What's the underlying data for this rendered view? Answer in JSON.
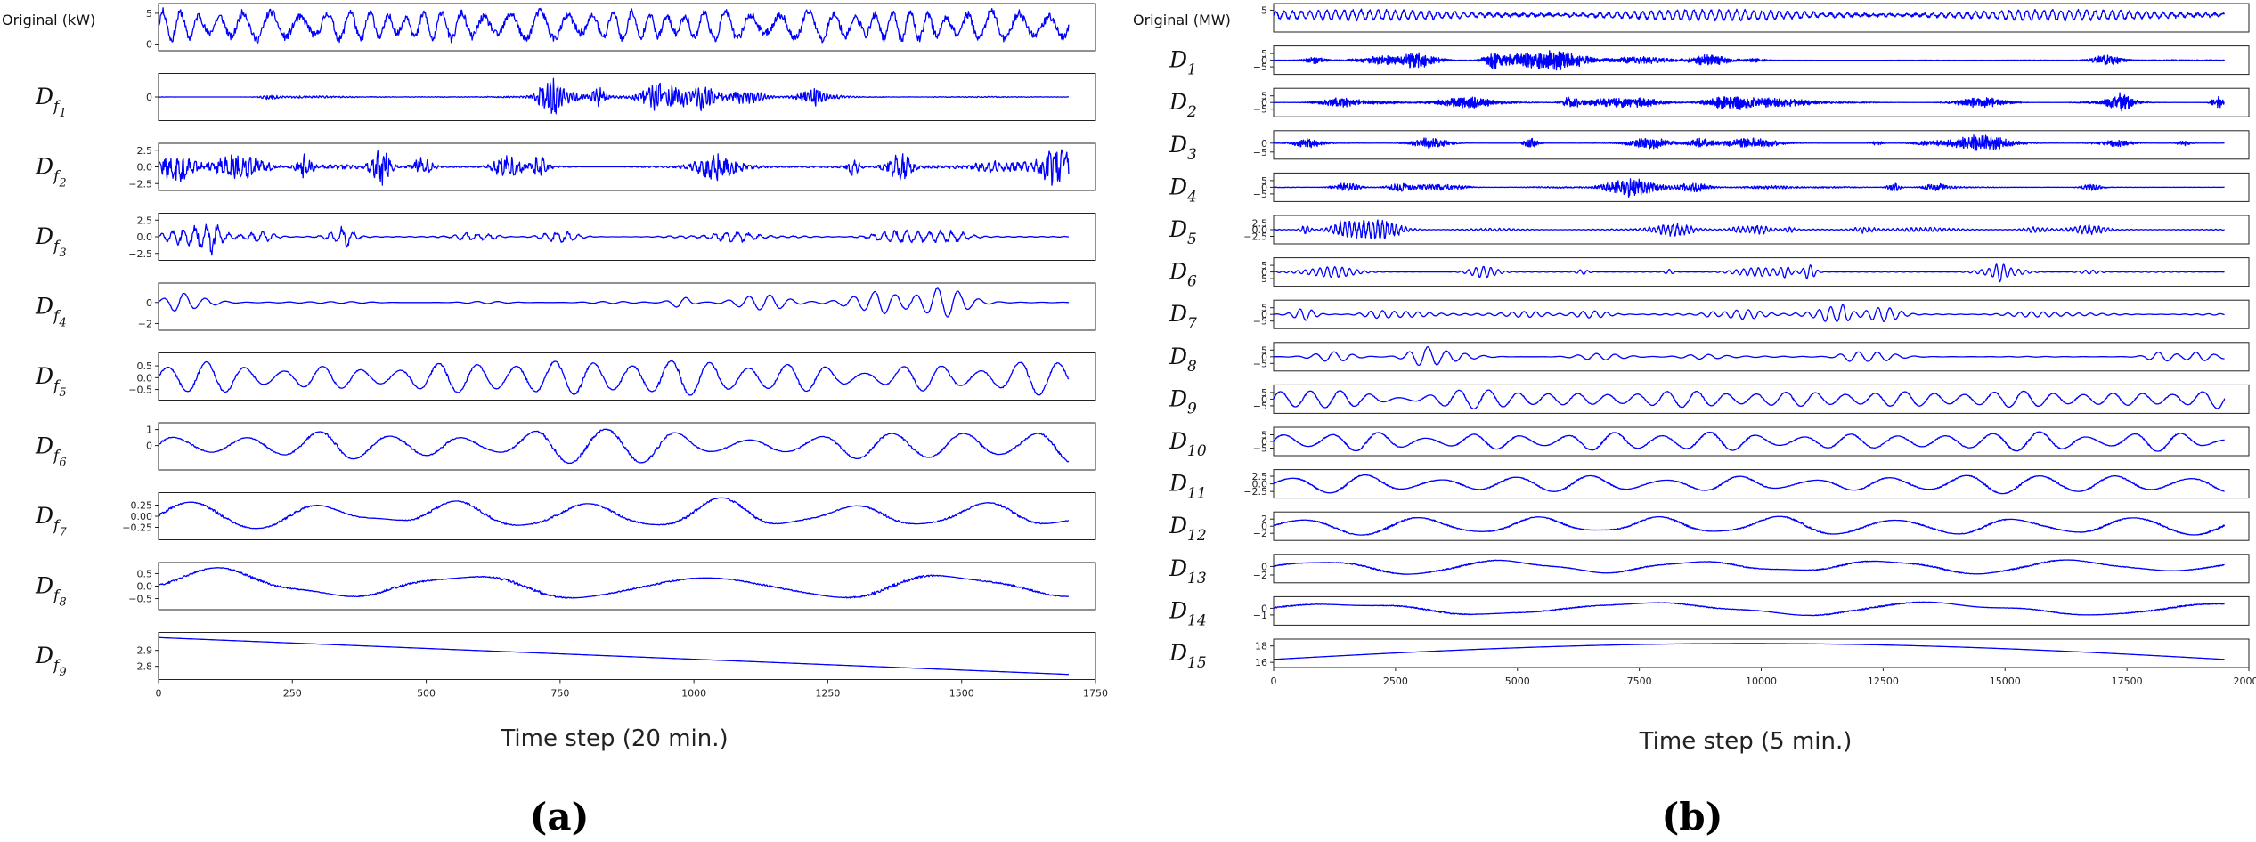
{
  "chart_data": [
    {
      "type": "line",
      "panel_label": "(a)",
      "xlabel": "Time step (20 min.)",
      "xlim": [
        0,
        1750
      ],
      "x_ticks": [
        "0",
        "250",
        "500",
        "750",
        "1000",
        "1250",
        "1500",
        "1750"
      ],
      "series_color": "#0000ff",
      "subplots": [
        {
          "title": "Original (kW)",
          "base": "",
          "sub": "",
          "ylim": [
            -0.5,
            6
          ],
          "yticks": [
            "0",
            "5"
          ]
        },
        {
          "title": "",
          "base": "D",
          "sub": "f",
          "sub2": "1",
          "ylim": [
            -2,
            2
          ],
          "yticks": [
            "0"
          ]
        },
        {
          "title": "",
          "base": "D",
          "sub": "f",
          "sub2": "2",
          "ylim": [
            -3,
            3
          ],
          "yticks": [
            "2.5",
            "0.0",
            "-2.5"
          ]
        },
        {
          "title": "",
          "base": "D",
          "sub": "f",
          "sub2": "3",
          "ylim": [
            -3,
            3
          ],
          "yticks": [
            "2.5",
            "0.0",
            "-2.5"
          ]
        },
        {
          "title": "",
          "base": "D",
          "sub": "f",
          "sub2": "4",
          "ylim": [
            -2.3,
            1.5
          ],
          "yticks": [
            "0",
            "-2"
          ]
        },
        {
          "title": "",
          "base": "D",
          "sub": "f",
          "sub2": "5",
          "ylim": [
            -0.8,
            0.9
          ],
          "yticks": [
            "0.5",
            "0.0",
            "-0.5"
          ]
        },
        {
          "title": "",
          "base": "D",
          "sub": "f",
          "sub2": "6",
          "ylim": [
            -1.3,
            1.2
          ],
          "yticks": [
            "1",
            "0"
          ]
        },
        {
          "title": "",
          "base": "D",
          "sub": "f",
          "sub2": "7",
          "ylim": [
            -0.45,
            0.45
          ],
          "yticks": [
            "0.25",
            "0.00",
            "-0.25"
          ]
        },
        {
          "title": "",
          "base": "D",
          "sub": "f",
          "sub2": "8",
          "ylim": [
            -0.8,
            0.8
          ],
          "yticks": [
            "0.5",
            "0.0",
            "-0.5"
          ]
        },
        {
          "title": "",
          "base": "D",
          "sub": "f",
          "sub2": "9",
          "ylim": [
            2.74,
            2.99
          ],
          "yticks": [
            "2.9",
            "2.8"
          ]
        }
      ]
    },
    {
      "type": "line",
      "panel_label": "(b)",
      "xlabel": "Time step (5 min.)",
      "xlim": [
        0,
        20000
      ],
      "x_ticks": [
        "0",
        "2500",
        "5000",
        "7500",
        "10000",
        "12500",
        "15000",
        "17500",
        "20000"
      ],
      "series_color": "#0000ff",
      "subplots": [
        {
          "title": "Original (MW)",
          "base": "",
          "sub": "",
          "ylim": [
            -1,
            6
          ],
          "yticks": [
            "5"
          ]
        },
        {
          "title": "",
          "base": "D",
          "sub": "1",
          "ylim": [
            -8,
            8
          ],
          "yticks": [
            "5",
            "0",
            "-5"
          ]
        },
        {
          "title": "",
          "base": "D",
          "sub": "2",
          "ylim": [
            -8,
            8
          ],
          "yticks": [
            "5",
            "0",
            "-5"
          ]
        },
        {
          "title": "",
          "base": "D",
          "sub": "3",
          "ylim": [
            -7,
            5
          ],
          "yticks": [
            "0",
            "-5"
          ]
        },
        {
          "title": "",
          "base": "D",
          "sub": "4",
          "ylim": [
            -8,
            8
          ],
          "yticks": [
            "5",
            "0",
            "-5"
          ]
        },
        {
          "title": "",
          "base": "D",
          "sub": "5",
          "ylim": [
            -4,
            4
          ],
          "yticks": [
            "2.5",
            "0.0",
            "-2.5"
          ]
        },
        {
          "title": "",
          "base": "D",
          "sub": "6",
          "ylim": [
            -8,
            8
          ],
          "yticks": [
            "5",
            "0",
            "-5"
          ]
        },
        {
          "title": "",
          "base": "D",
          "sub": "7",
          "ylim": [
            -8,
            8
          ],
          "yticks": [
            "5",
            "0",
            "-5"
          ]
        },
        {
          "title": "",
          "base": "D",
          "sub": "8",
          "ylim": [
            -8,
            8
          ],
          "yticks": [
            "5",
            "0",
            "-5"
          ]
        },
        {
          "title": "",
          "base": "D",
          "sub": "9",
          "ylim": [
            -8,
            8
          ],
          "yticks": [
            "5",
            "0",
            "-5"
          ]
        },
        {
          "title": "",
          "base": "D",
          "sub": "10",
          "ylim": [
            -8,
            8
          ],
          "yticks": [
            "5",
            "0",
            "-5"
          ]
        },
        {
          "title": "",
          "base": "D",
          "sub": "11",
          "ylim": [
            -3.5,
            3.5
          ],
          "yticks": [
            "2.5",
            "0.0",
            "-2.5"
          ]
        },
        {
          "title": "",
          "base": "D",
          "sub": "12",
          "ylim": [
            -3,
            3
          ],
          "yticks": [
            "2",
            "0",
            "-2"
          ]
        },
        {
          "title": "",
          "base": "D",
          "sub": "13",
          "ylim": [
            -3,
            2
          ],
          "yticks": [
            "0",
            "-2"
          ]
        },
        {
          "title": "",
          "base": "D",
          "sub": "14",
          "ylim": [
            -2,
            1.2
          ],
          "yticks": [
            "0",
            "-1"
          ]
        },
        {
          "title": "",
          "base": "D",
          "sub": "15",
          "ylim": [
            15.8,
            18.4
          ],
          "yticks": [
            "18",
            "16"
          ]
        }
      ]
    }
  ]
}
